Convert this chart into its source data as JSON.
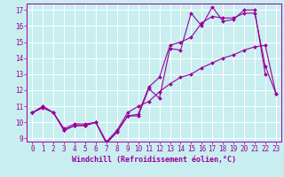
{
  "background_color": "#c8eef0",
  "grid_color": "#ffffff",
  "line_color": "#990099",
  "xlabel": "Windchill (Refroidissement éolien,°C)",
  "xlim": [
    -0.5,
    23.5
  ],
  "ylim": [
    8.8,
    17.4
  ],
  "yticks": [
    9,
    10,
    11,
    12,
    13,
    14,
    15,
    16,
    17
  ],
  "xticks": [
    0,
    1,
    2,
    3,
    4,
    5,
    6,
    7,
    8,
    9,
    10,
    11,
    12,
    13,
    14,
    15,
    16,
    17,
    18,
    19,
    20,
    21,
    22,
    23
  ],
  "series1_x": [
    0,
    1,
    2,
    3,
    4,
    5,
    6,
    7,
    8,
    9,
    10,
    11,
    12,
    13,
    14,
    15,
    16,
    17,
    18,
    19,
    20,
    21,
    22
  ],
  "series1_y": [
    10.6,
    11.0,
    10.6,
    9.5,
    9.8,
    9.8,
    10.0,
    8.7,
    9.4,
    10.4,
    10.4,
    12.1,
    11.5,
    14.6,
    14.5,
    16.8,
    16.0,
    17.2,
    16.3,
    16.4,
    17.0,
    17.0,
    13.0
  ],
  "series2_x": [
    0,
    1,
    2,
    3,
    4,
    5,
    6,
    7,
    8,
    9,
    10,
    11,
    12,
    13,
    14,
    15,
    16,
    17,
    18,
    19,
    20,
    21,
    22,
    23
  ],
  "series2_y": [
    10.6,
    11.0,
    10.6,
    9.5,
    9.8,
    9.8,
    10.0,
    8.7,
    9.4,
    10.4,
    10.5,
    12.2,
    12.8,
    14.8,
    15.0,
    15.3,
    16.2,
    16.6,
    16.5,
    16.5,
    16.8,
    16.8,
    13.5,
    11.8
  ],
  "series3_x": [
    0,
    1,
    2,
    3,
    4,
    5,
    6,
    7,
    8,
    9,
    10,
    11,
    12,
    13,
    14,
    15,
    16,
    17,
    18,
    19,
    20,
    21,
    22,
    23
  ],
  "series3_y": [
    10.6,
    10.9,
    10.6,
    9.6,
    9.9,
    9.9,
    10.0,
    8.8,
    9.5,
    10.6,
    11.0,
    11.3,
    11.9,
    12.4,
    12.8,
    13.0,
    13.4,
    13.7,
    14.0,
    14.2,
    14.5,
    14.7,
    14.8,
    11.8
  ],
  "markersize": 2.0,
  "linewidth": 0.8,
  "xlabel_fontsize": 6.0,
  "tick_fontsize": 5.5,
  "tick_color": "#990099",
  "spine_color": "#990099"
}
